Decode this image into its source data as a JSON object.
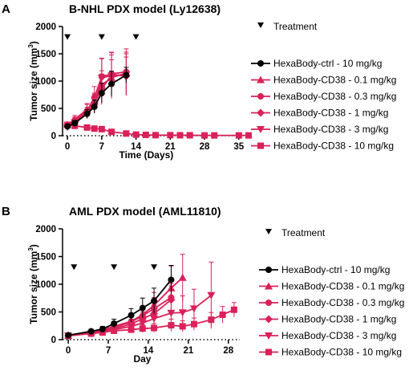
{
  "chart_data": [
    {
      "type": "line",
      "panel": "A",
      "title": "B-NHL PDX model (Ly12638)",
      "xlabel": "Time (Days)",
      "ylabel": "Tumor size (mm",
      "ylabel_sup": "3",
      "ylabel_end": ")",
      "xlim": [
        -1,
        37
      ],
      "ylim": [
        0,
        2000
      ],
      "xticks": [
        0,
        7,
        14,
        21,
        28,
        35
      ],
      "yticks": [
        0,
        500,
        1000,
        1500,
        2000
      ],
      "treatment_label": "Treatment",
      "treatment_days": [
        0,
        7,
        14
      ],
      "treatment_y": 1800,
      "series": [
        {
          "name": "HexaBody-ctrl - 10 mg/kg",
          "color": "#000000",
          "marker": "circle",
          "x": [
            0,
            1.5,
            4,
            5.5,
            7,
            9,
            12
          ],
          "y": [
            170,
            230,
            400,
            530,
            780,
            950,
            1110
          ],
          "err": [
            40,
            50,
            80,
            120,
            180,
            230,
            140
          ]
        },
        {
          "name": "HexaBody-CD38 - 0.1 mg/kg",
          "color": "#d9215a",
          "marker": "triangle-up",
          "x": [
            0,
            1.5,
            4,
            5.5,
            7,
            9,
            12
          ],
          "y": [
            200,
            300,
            480,
            620,
            930,
            1060,
            1150
          ],
          "err": [
            50,
            70,
            110,
            160,
            260,
            330,
            380
          ]
        },
        {
          "name": "HexaBody-CD38 - 0.3 mg/kg",
          "color": "#d9215a",
          "marker": "circle",
          "x": [
            0,
            1.5,
            4,
            5.5,
            7,
            9,
            12
          ],
          "y": [
            190,
            280,
            450,
            700,
            1080,
            1130,
            1170
          ],
          "err": [
            50,
            60,
            120,
            200,
            330,
            400,
            420
          ]
        },
        {
          "name": "HexaBody-CD38 - 1 mg/kg",
          "color": "#d9215a",
          "marker": "diamond",
          "x": [
            0,
            1.5,
            4,
            5.5,
            7,
            9,
            12
          ],
          "y": [
            180,
            260,
            420,
            600,
            850,
            1120,
            1090
          ],
          "err": [
            40,
            60,
            100,
            160,
            280,
            360,
            350
          ]
        },
        {
          "name": "HexaBody-CD38 - 3 mg/kg",
          "color": "#d9215a",
          "marker": "triangle-down",
          "x": [
            0,
            1.5,
            4,
            5.5,
            7,
            9,
            12
          ],
          "y": [
            160,
            240,
            400,
            560,
            1060,
            1100,
            1120
          ],
          "err": [
            40,
            50,
            90,
            140,
            360,
            420,
            380
          ]
        },
        {
          "name": "HexaBody-CD38 - 10 mg/kg",
          "color": "#d9215a",
          "marker": "square",
          "x": [
            0,
            1.5,
            4,
            5.5,
            7,
            9,
            12,
            14,
            16,
            18,
            21,
            23,
            25,
            28,
            30,
            35,
            37
          ],
          "y": [
            200,
            180,
            150,
            130,
            120,
            70,
            40,
            20,
            15,
            10,
            10,
            8,
            8,
            5,
            5,
            5,
            5
          ],
          "err": [
            40,
            40,
            30,
            30,
            30,
            20,
            15,
            10,
            5,
            5,
            5,
            5,
            5,
            3,
            3,
            3,
            3
          ]
        }
      ]
    },
    {
      "type": "line",
      "panel": "B",
      "title": "AML PDX model (AML11810)",
      "xlabel": "Day",
      "ylabel": "Tumor size (mm",
      "ylabel_sup": "3",
      "ylabel_end": ")",
      "xlim": [
        -1,
        30
      ],
      "ylim": [
        0,
        2000
      ],
      "xticks": [
        0,
        7,
        14,
        21,
        28
      ],
      "yticks": [
        0,
        500,
        1000,
        1500,
        2000
      ],
      "treatment_label": "Treatment",
      "treatment_days": [
        1,
        8,
        15
      ],
      "treatment_y": 1300,
      "series": [
        {
          "name": "HexaBody-ctrl - 10 mg/kg",
          "color": "#000000",
          "marker": "circle",
          "x": [
            0,
            4,
            6,
            8,
            11,
            13,
            15,
            18
          ],
          "y": [
            80,
            150,
            190,
            290,
            440,
            570,
            700,
            1080
          ],
          "err": [
            30,
            40,
            50,
            80,
            120,
            180,
            230,
            260
          ]
        },
        {
          "name": "HexaBody-CD38 - 0.1 mg/kg",
          "color": "#d9215a",
          "marker": "triangle-up",
          "x": [
            0,
            4,
            6,
            8,
            11,
            13,
            15,
            18,
            20
          ],
          "y": [
            70,
            140,
            180,
            240,
            330,
            450,
            620,
            930,
            1120
          ],
          "err": [
            25,
            40,
            50,
            70,
            100,
            150,
            230,
            400,
            420
          ]
        },
        {
          "name": "HexaBody-CD38 - 0.3 mg/kg",
          "color": "#d9215a",
          "marker": "circle",
          "x": [
            0,
            4,
            6,
            8,
            11,
            13,
            15,
            18
          ],
          "y": [
            70,
            130,
            160,
            220,
            320,
            430,
            560,
            760
          ],
          "err": [
            25,
            40,
            50,
            70,
            100,
            140,
            200,
            250
          ]
        },
        {
          "name": "HexaBody-CD38 - 1 mg/kg",
          "color": "#d9215a",
          "marker": "diamond",
          "x": [
            0,
            4,
            6,
            8,
            11,
            13,
            15,
            18
          ],
          "y": [
            70,
            120,
            150,
            200,
            280,
            380,
            470,
            720
          ],
          "err": [
            25,
            35,
            45,
            60,
            90,
            120,
            160,
            250
          ]
        },
        {
          "name": "HexaBody-CD38 - 3 mg/kg",
          "color": "#d9215a",
          "marker": "triangle-down",
          "x": [
            0,
            4,
            6,
            8,
            11,
            13,
            15,
            18,
            20,
            22,
            25
          ],
          "y": [
            70,
            110,
            130,
            180,
            240,
            300,
            380,
            480,
            490,
            560,
            800
          ],
          "err": [
            25,
            35,
            40,
            60,
            80,
            100,
            140,
            220,
            300,
            350,
            600
          ]
        },
        {
          "name": "HexaBody-CD38 - 10 mg/kg",
          "color": "#d9215a",
          "marker": "square",
          "x": [
            0,
            4,
            6,
            8,
            11,
            13,
            15,
            18,
            20,
            22,
            25,
            27,
            29
          ],
          "y": [
            70,
            110,
            130,
            160,
            180,
            200,
            210,
            260,
            240,
            280,
            360,
            450,
            540
          ],
          "err": [
            25,
            35,
            40,
            50,
            60,
            70,
            80,
            110,
            100,
            110,
            130,
            150,
            130
          ]
        }
      ]
    }
  ]
}
